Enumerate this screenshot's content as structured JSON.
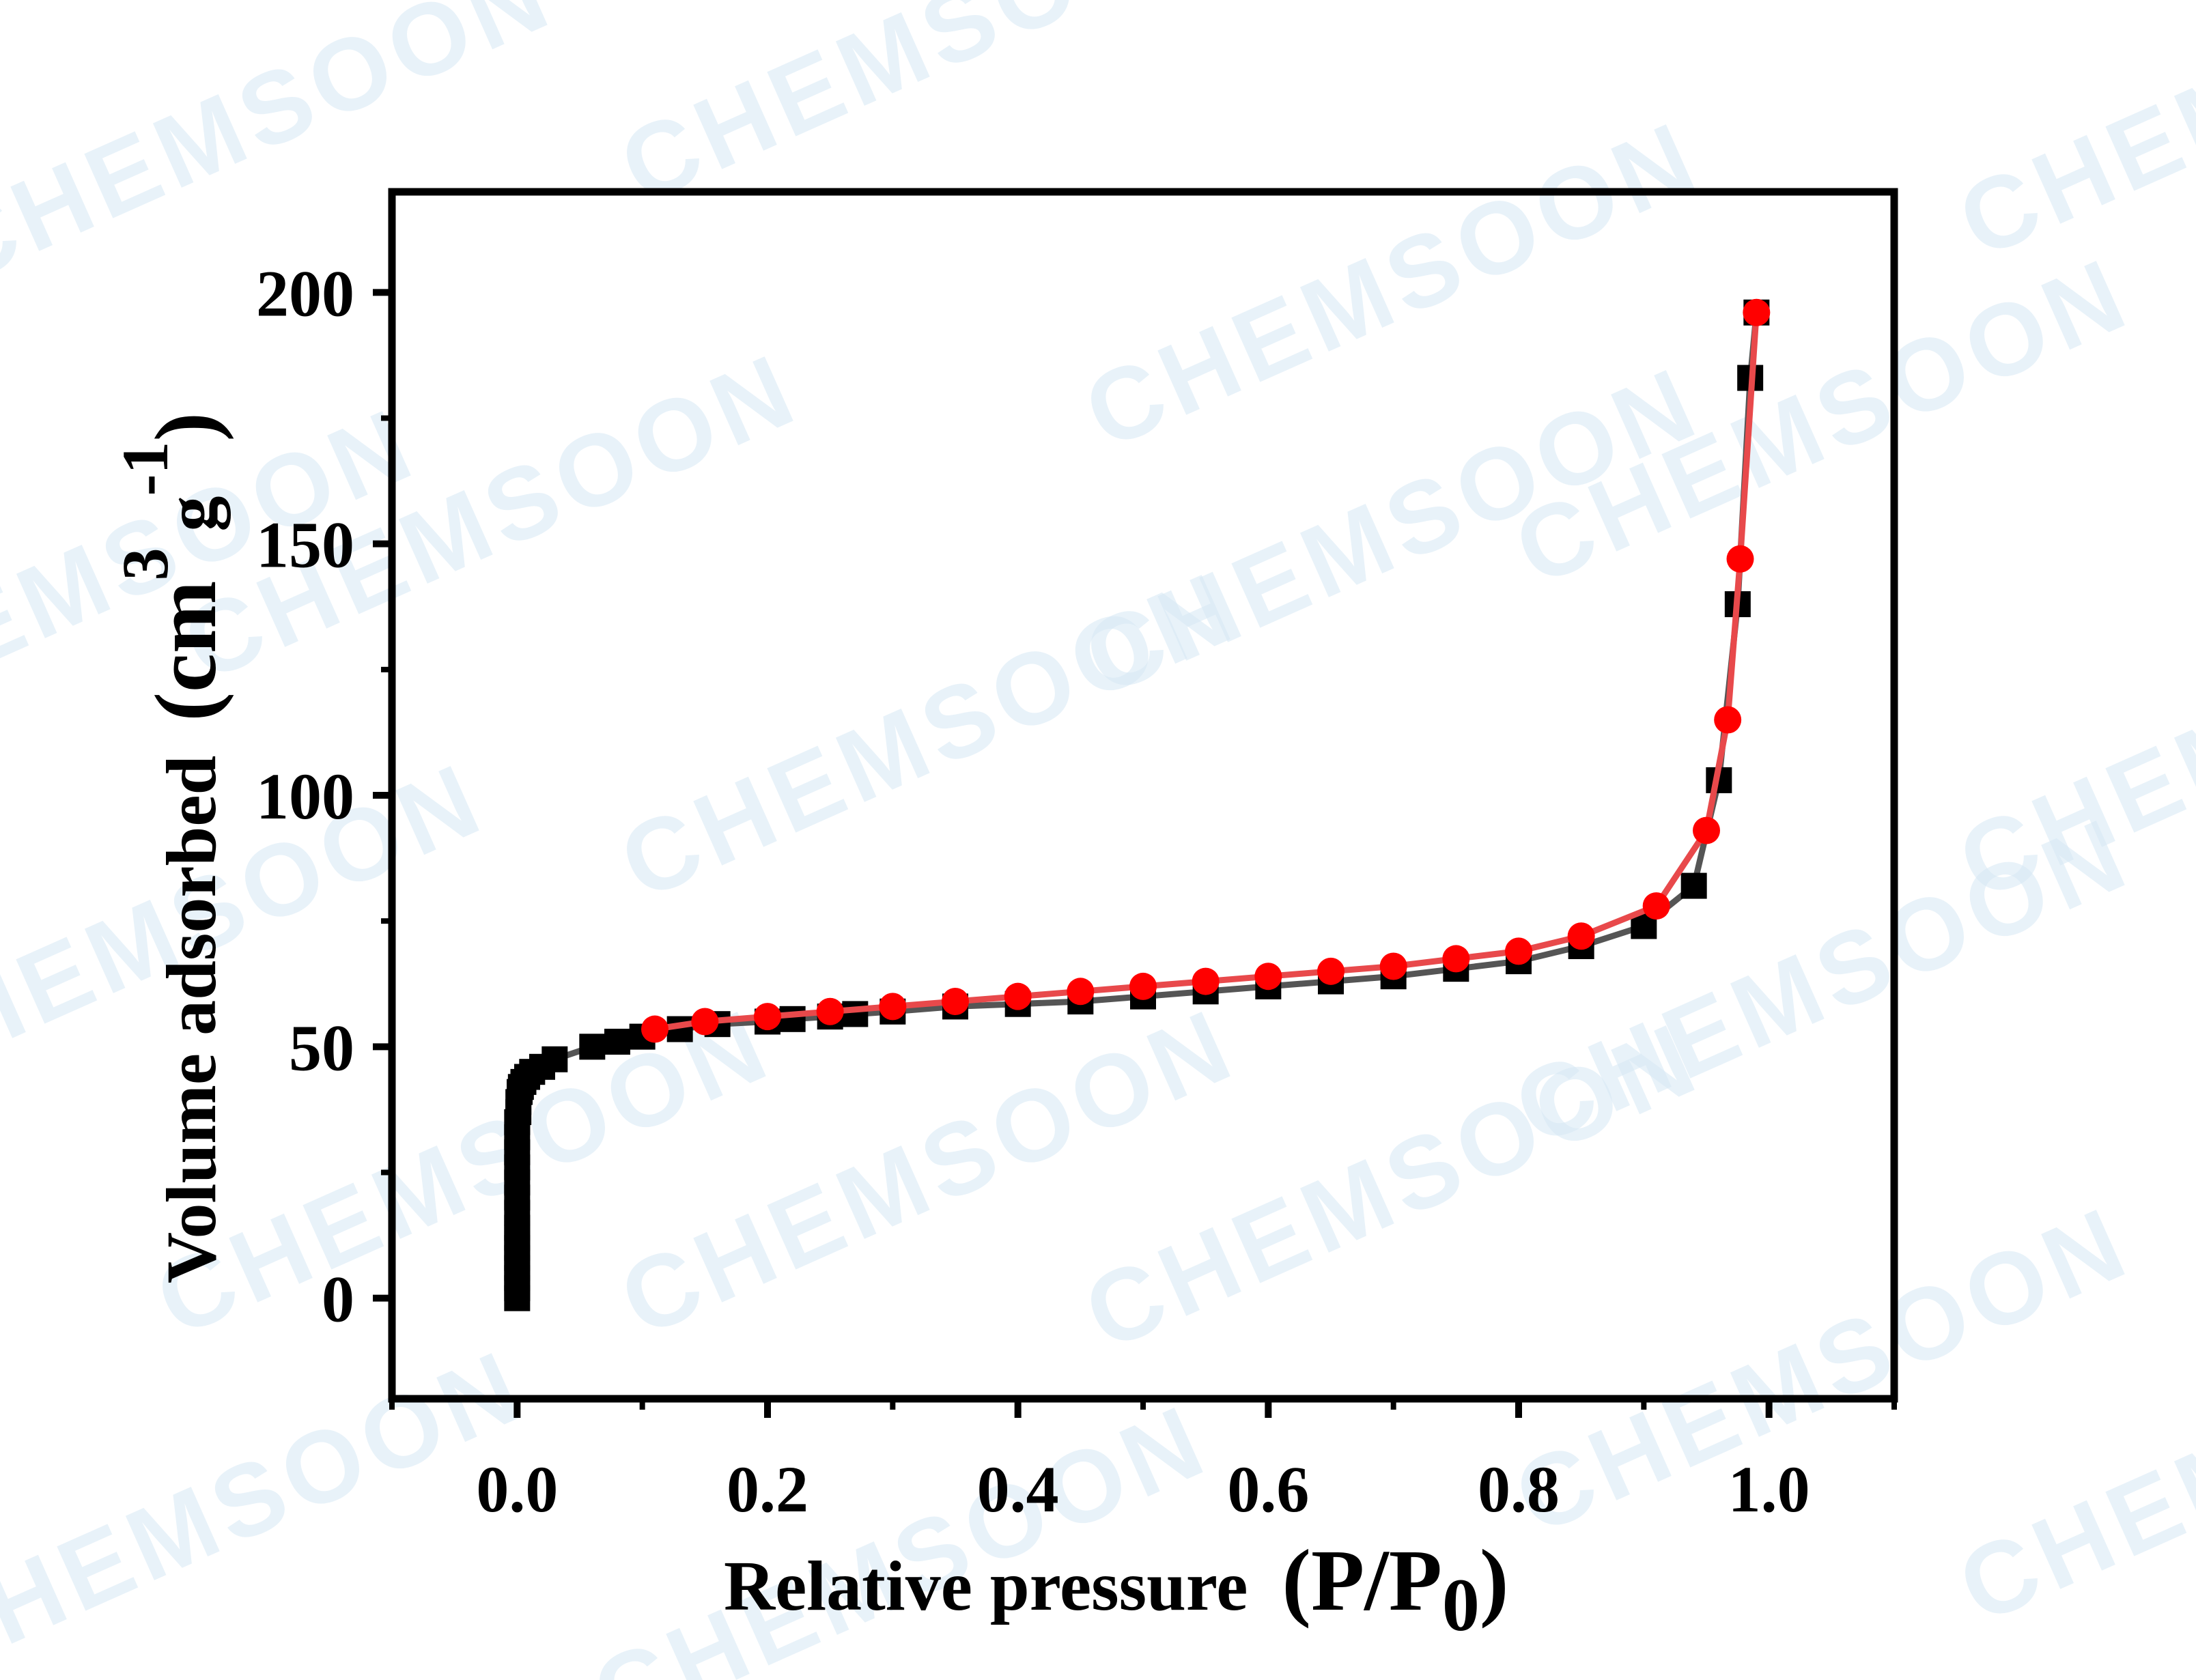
{
  "watermark": "CHEMSOON",
  "colors": {
    "adsorption": "#000000",
    "adsorption_line": "#555555",
    "desorption": "#ff0000",
    "desorption_line": "#e8494b",
    "watermark": "#d6e8f5"
  },
  "chart_data": {
    "type": "scatter",
    "title": "",
    "xlabel": "Relative pressure",
    "xlabel_unit": "(P/P",
    "xlabel_sub": "0",
    "xlabel_close": ")",
    "ylabel": "Volume adsorbed",
    "ylabel_unit_open": "(cm",
    "ylabel_sup3": "3",
    "ylabel_g": "g",
    "ylabel_sup_neg1": "-1",
    "ylabel_close": ")",
    "xlim": [
      -0.1,
      1.1
    ],
    "ylim": [
      -20,
      220
    ],
    "xticks": [
      "0.0",
      "0.2",
      "0.4",
      "0.6",
      "0.8",
      "1.0"
    ],
    "xtick_values": [
      0.0,
      0.2,
      0.4,
      0.6,
      0.8,
      1.0
    ],
    "yticks": [
      "0",
      "50",
      "100",
      "150",
      "200"
    ],
    "ytick_values": [
      0,
      50,
      100,
      150,
      200
    ],
    "grid": false,
    "legend": "none",
    "series": [
      {
        "marker": "square",
        "color": "#000000",
        "x": [
          0.0,
          0.0,
          0.0,
          0.0,
          0.0,
          0.0,
          0.0,
          0.0,
          0.0,
          0.0,
          0.0,
          0.0,
          0.0,
          0.0,
          0.0,
          0.001,
          0.001,
          0.002,
          0.003,
          0.005,
          0.008,
          0.012,
          0.02,
          0.03,
          0.06,
          0.08,
          0.1,
          0.13,
          0.16,
          0.2,
          0.22,
          0.25,
          0.27,
          0.3,
          0.35,
          0.4,
          0.45,
          0.5,
          0.55,
          0.6,
          0.65,
          0.7,
          0.75,
          0.8,
          0.85,
          0.9,
          0.94,
          0.96,
          0.975,
          0.985,
          0.99
        ],
        "y": [
          0,
          2,
          4,
          6,
          8,
          10,
          12,
          14,
          17,
          20,
          23,
          26,
          29,
          32,
          35,
          37,
          39,
          41,
          42,
          43,
          44,
          45,
          46,
          47.5,
          50,
          51,
          52,
          53.5,
          54.5,
          55,
          55.5,
          56,
          56.5,
          57,
          58,
          58.5,
          59,
          60,
          61,
          62,
          63,
          64,
          65.5,
          67,
          70,
          74,
          82,
          103,
          138,
          183,
          196
        ]
      },
      {
        "marker": "circle",
        "color": "#ff0000",
        "x": [
          0.11,
          0.15,
          0.2,
          0.25,
          0.3,
          0.35,
          0.4,
          0.45,
          0.5,
          0.55,
          0.6,
          0.65,
          0.7,
          0.75,
          0.8,
          0.85,
          0.91,
          0.95,
          0.967,
          0.977,
          0.99
        ],
        "y": [
          53.5,
          55,
          56,
          57,
          58,
          59,
          60,
          61,
          62,
          63,
          64,
          65,
          66,
          67.5,
          69,
          72,
          78,
          93,
          115,
          147,
          196
        ]
      }
    ]
  }
}
